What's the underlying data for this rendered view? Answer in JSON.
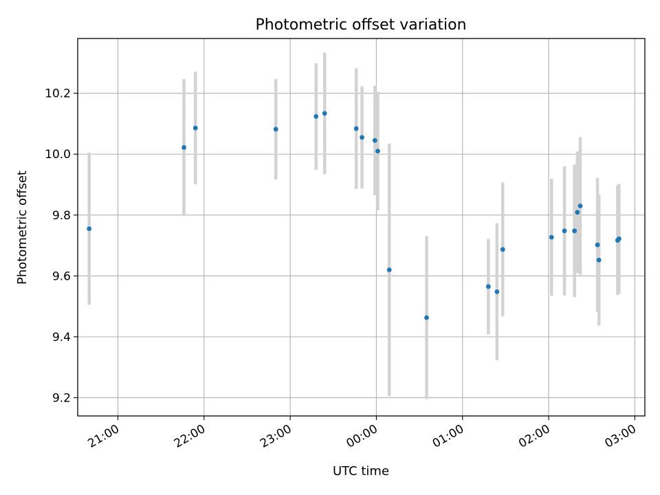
{
  "chart_data": {
    "type": "scatter",
    "title": "Photometric offset variation",
    "xlabel": "UTC time",
    "ylabel": "Photometric offset",
    "x_ticks": [
      "21:00",
      "22:00",
      "23:00",
      "00:00",
      "01:00",
      "02:00",
      "03:00"
    ],
    "y_ticks": [
      "9.2",
      "9.4",
      "9.6",
      "9.8",
      "10.0",
      "10.2"
    ],
    "xlim": [
      "20:32",
      "03:07"
    ],
    "ylim": [
      9.14,
      10.38
    ],
    "grid": true,
    "point_color": "#1f77b4",
    "errorbar_color": "#d3d3d3",
    "series": [
      {
        "points": [
          {
            "t": "20:40",
            "y": 9.755,
            "err": 0.25
          },
          {
            "t": "21:46",
            "y": 10.022,
            "err": 0.225
          },
          {
            "t": "21:54",
            "y": 10.086,
            "err": 0.185
          },
          {
            "t": "22:50",
            "y": 10.082,
            "err": 0.165
          },
          {
            "t": "23:18",
            "y": 10.124,
            "err": 0.175
          },
          {
            "t": "23:24",
            "y": 10.134,
            "err": 0.2
          },
          {
            "t": "23:46",
            "y": 10.084,
            "err": 0.198
          },
          {
            "t": "23:50",
            "y": 10.055,
            "err": 0.168
          },
          {
            "t": "23:59",
            "y": 10.045,
            "err": 0.18
          },
          {
            "t": "00:01",
            "y": 10.01,
            "err": 0.195
          },
          {
            "t": "00:09",
            "y": 9.62,
            "err": 0.415
          },
          {
            "t": "00:35",
            "y": 9.463,
            "err": 0.268
          },
          {
            "t": "01:18",
            "y": 9.565,
            "err": 0.157
          },
          {
            "t": "01:24",
            "y": 9.548,
            "err": 0.225
          },
          {
            "t": "01:28",
            "y": 9.687,
            "err": 0.22
          },
          {
            "t": "02:02",
            "y": 9.727,
            "err": 0.192
          },
          {
            "t": "02:11",
            "y": 9.748,
            "err": 0.212
          },
          {
            "t": "02:18",
            "y": 9.748,
            "err": 0.218
          },
          {
            "t": "02:20",
            "y": 9.809,
            "err": 0.2
          },
          {
            "t": "02:22",
            "y": 9.83,
            "err": 0.226
          },
          {
            "t": "02:34",
            "y": 9.702,
            "err": 0.22
          },
          {
            "t": "02:35",
            "y": 9.652,
            "err": 0.215
          },
          {
            "t": "02:48",
            "y": 9.717,
            "err": 0.18
          },
          {
            "t": "02:49",
            "y": 9.722,
            "err": 0.18
          }
        ]
      }
    ]
  }
}
